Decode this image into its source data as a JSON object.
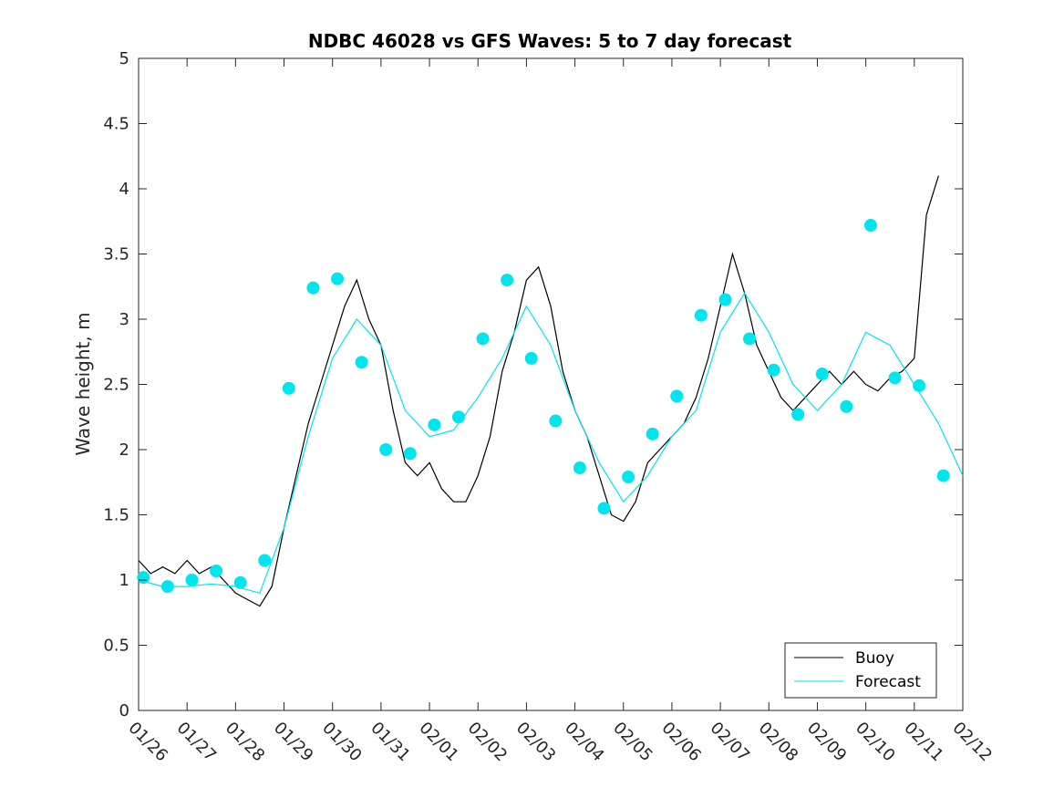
{
  "chart_data": {
    "type": "line",
    "title": "NDBC 46028 vs GFS Waves: 5 to 7 day forecast",
    "xlabel": "",
    "ylabel": "Wave height, m",
    "xlim": [
      0,
      17
    ],
    "ylim": [
      0,
      5
    ],
    "x_tick_labels": [
      "01/26",
      "01/27",
      "01/28",
      "01/29",
      "01/30",
      "01/31",
      "02/01",
      "02/02",
      "02/03",
      "02/04",
      "02/05",
      "02/06",
      "02/07",
      "02/08",
      "02/09",
      "02/10",
      "02/11",
      "02/12"
    ],
    "y_ticks": [
      0,
      0.5,
      1,
      1.5,
      2,
      2.5,
      3,
      3.5,
      4,
      4.5,
      5
    ],
    "y_tick_labels": [
      "0",
      "0.5",
      "1",
      "1.5",
      "2",
      "2.5",
      "3",
      "3.5",
      "4",
      "4.5",
      "5"
    ],
    "legend": {
      "position": "bottom-right",
      "entries": [
        "Buoy",
        "Forecast"
      ]
    },
    "colors": {
      "buoy": "#000000",
      "forecast": "#00e5ee",
      "marker": "#00e5ee"
    },
    "series": [
      {
        "name": "Buoy",
        "x": [
          0,
          0.25,
          0.5,
          0.75,
          1,
          1.25,
          1.5,
          1.75,
          2,
          2.25,
          2.5,
          2.75,
          3,
          3.25,
          3.5,
          3.75,
          4,
          4.25,
          4.5,
          4.75,
          5,
          5.25,
          5.5,
          5.75,
          6,
          6.25,
          6.5,
          6.75,
          7,
          7.25,
          7.5,
          7.75,
          8,
          8.25,
          8.5,
          8.75,
          9,
          9.25,
          9.5,
          9.75,
          10,
          10.25,
          10.5,
          10.75,
          11,
          11.25,
          11.5,
          11.75,
          12,
          12.25,
          12.5,
          12.75,
          13,
          13.25,
          13.5,
          13.75,
          14,
          14.25,
          14.5,
          14.75,
          15,
          15.25,
          15.5,
          15.75,
          16,
          16.25,
          16.5
        ],
        "values": [
          1.15,
          1.05,
          1.1,
          1.05,
          1.15,
          1.05,
          1.1,
          1.0,
          0.9,
          0.85,
          0.8,
          0.95,
          1.4,
          1.8,
          2.2,
          2.5,
          2.8,
          3.1,
          3.3,
          3.0,
          2.8,
          2.3,
          1.9,
          1.8,
          1.9,
          1.7,
          1.6,
          1.6,
          1.8,
          2.1,
          2.6,
          2.9,
          3.3,
          3.4,
          3.1,
          2.6,
          2.3,
          2.1,
          1.8,
          1.5,
          1.45,
          1.6,
          1.9,
          2.0,
          2.1,
          2.2,
          2.4,
          2.7,
          3.1,
          3.5,
          3.2,
          2.8,
          2.6,
          2.4,
          2.3,
          2.4,
          2.5,
          2.6,
          2.5,
          2.6,
          2.5,
          2.45,
          2.55,
          2.6,
          2.7,
          3.8,
          4.1
        ]
      },
      {
        "name": "Forecast",
        "x": [
          0,
          0.5,
          1,
          1.5,
          2,
          2.5,
          3,
          3.5,
          4,
          4.5,
          5,
          5.5,
          6,
          6.5,
          7,
          7.5,
          8,
          8.5,
          9,
          9.5,
          10,
          10.5,
          11,
          11.5,
          12,
          12.5,
          13,
          13.5,
          14,
          14.5,
          15,
          15.5,
          16,
          16.5,
          17
        ],
        "values": [
          1.0,
          0.95,
          0.95,
          0.97,
          0.95,
          0.9,
          1.4,
          2.1,
          2.7,
          3.0,
          2.8,
          2.3,
          2.1,
          2.15,
          2.4,
          2.7,
          3.1,
          2.8,
          2.3,
          1.9,
          1.6,
          1.8,
          2.1,
          2.3,
          2.9,
          3.2,
          2.9,
          2.5,
          2.3,
          2.5,
          2.9,
          2.8,
          2.5,
          2.2,
          1.8
        ]
      },
      {
        "name": "Forecast markers",
        "x": [
          0.1,
          0.6,
          1.1,
          1.6,
          2.1,
          2.6,
          3.1,
          3.6,
          4.1,
          4.6,
          5.1,
          5.6,
          6.1,
          6.6,
          7.1,
          7.6,
          8.1,
          8.6,
          9.1,
          9.6,
          10.1,
          10.6,
          11.1,
          11.6,
          12.1,
          12.6,
          13.1,
          13.6,
          14.1,
          14.6,
          15.1,
          15.6,
          16.1,
          16.6
        ],
        "values": [
          1.02,
          0.95,
          1.0,
          1.07,
          0.98,
          1.15,
          2.47,
          3.24,
          3.31,
          2.67,
          2.0,
          1.97,
          2.19,
          2.25,
          2.85,
          3.3,
          2.7,
          2.22,
          1.86,
          1.55,
          1.79,
          2.12,
          2.41,
          3.03,
          3.15,
          2.85,
          2.61,
          2.27,
          2.58,
          2.33,
          3.72,
          2.55,
          2.49,
          1.8
        ]
      }
    ]
  }
}
